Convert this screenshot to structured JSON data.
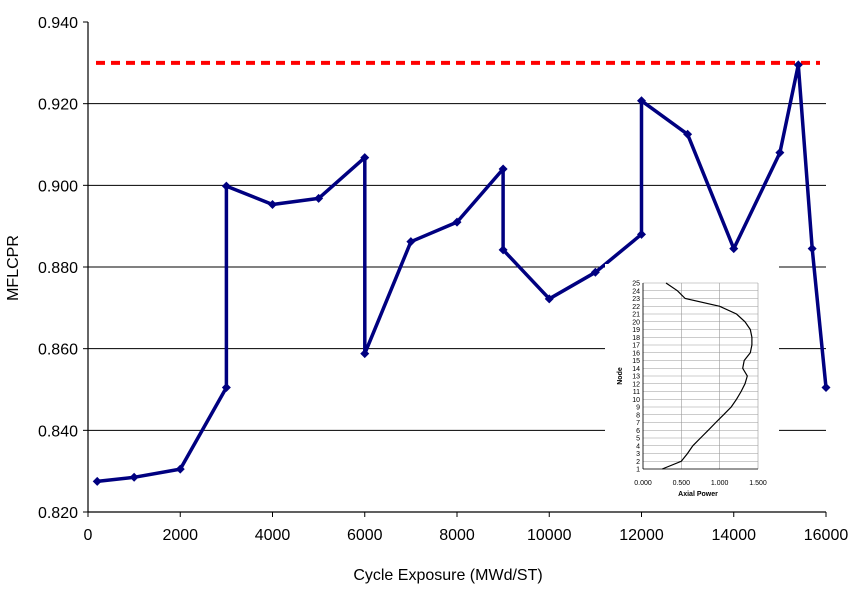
{
  "chart_data": [
    {
      "type": "line",
      "title": "",
      "xlabel": "Cycle Exposure (MWd/ST)",
      "ylabel": "MFLCPR",
      "xlim": [
        0,
        16000
      ],
      "ylim": [
        0.82,
        0.94
      ],
      "x_ticks": [
        "0",
        "2000",
        "4000",
        "6000",
        "8000",
        "10000",
        "12000",
        "14000",
        "16000"
      ],
      "y_ticks": [
        "0.820",
        "0.840",
        "0.860",
        "0.880",
        "0.900",
        "0.920",
        "0.940"
      ],
      "grid": "horizontal",
      "limit_line": {
        "y": 0.93,
        "style": "dashed",
        "color": "#ff0000"
      },
      "line_color": "#000080",
      "series": [
        {
          "x": [
            200,
            1000,
            2000,
            3000,
            3000,
            4000,
            5000,
            6000,
            6000,
            7000,
            8000,
            9000,
            9000,
            10000,
            11000,
            12000,
            12000,
            13000,
            14000,
            15000,
            15400,
            15700,
            16000
          ],
          "y": [
            0.8275,
            0.8285,
            0.8305,
            0.8505,
            0.8998,
            0.8953,
            0.8968,
            0.9068,
            0.8588,
            0.8862,
            0.891,
            0.904,
            0.8842,
            0.8722,
            0.8787,
            0.888,
            0.9207,
            0.9125,
            0.8845,
            0.908,
            0.9295,
            0.8845,
            0.8505
          ]
        }
      ]
    },
    {
      "type": "line",
      "title": "",
      "xlabel": "Axial Power",
      "ylabel": "Node",
      "xlim": [
        0,
        1.5
      ],
      "ylim": [
        1,
        25
      ],
      "x_ticks": [
        "0.000",
        "0.500",
        "1.000",
        "1.500"
      ],
      "y_ticks": [
        "1",
        "2",
        "3",
        "4",
        "5",
        "6",
        "7",
        "8",
        "9",
        "10",
        "11",
        "12",
        "13",
        "14",
        "15",
        "16",
        "17",
        "18",
        "19",
        "20",
        "21",
        "22",
        "23",
        "24",
        "25"
      ],
      "grid": "horizontal",
      "line_color": "#000000",
      "series": [
        {
          "x": [
            0.25,
            0.5,
            0.58,
            0.65,
            0.75,
            0.85,
            0.95,
            1.05,
            1.15,
            1.22,
            1.28,
            1.33,
            1.36,
            1.3,
            1.32,
            1.4,
            1.42,
            1.42,
            1.4,
            1.33,
            1.22,
            1.0,
            0.55,
            0.45,
            0.3
          ],
          "y": [
            1,
            2,
            3,
            4,
            5,
            6,
            7,
            8,
            9,
            10,
            11,
            12,
            13,
            14,
            15,
            16,
            17,
            18,
            19,
            20,
            21,
            22,
            23,
            24,
            25
          ]
        }
      ]
    }
  ]
}
